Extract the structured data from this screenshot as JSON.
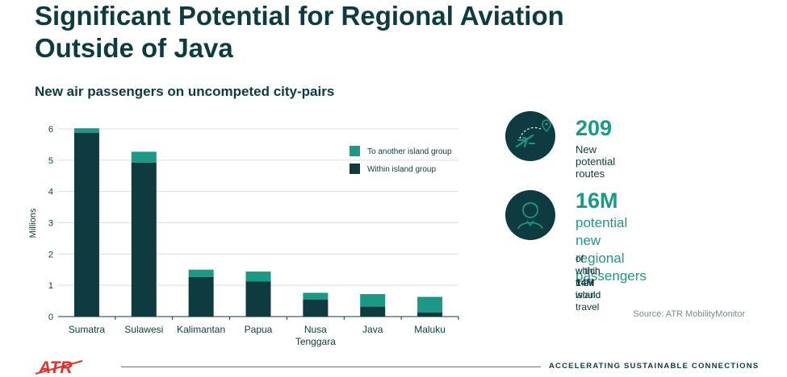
{
  "title": "Significant Potential for Regional Aviation Outside of Java",
  "colors": {
    "dark": "#0e3b3f",
    "teal": "#1a9a86"
  },
  "chart_data": {
    "type": "bar",
    "stacked": true,
    "subtitle": "New air passengers on uncompeted city-pairs",
    "ylabel": "Millions",
    "ylim": [
      0,
      6
    ],
    "yticks": [
      0,
      1,
      2,
      3,
      4,
      5,
      6
    ],
    "grid": true,
    "legend_position": "top-right",
    "categories": [
      "Sumatra",
      "Sulawesi",
      "Kalimantan",
      "Papua",
      "Nusa Tenggara",
      "Java",
      "Maluku"
    ],
    "series": [
      {
        "name": "Within island group",
        "color": "#0e3b3f",
        "values": [
          5.88,
          4.92,
          1.27,
          1.12,
          0.54,
          0.32,
          0.13
        ]
      },
      {
        "name": "To another island group",
        "color": "#1a9a86",
        "values": [
          0.14,
          0.35,
          0.23,
          0.32,
          0.22,
          0.4,
          0.5
        ]
      }
    ]
  },
  "stats": [
    {
      "icon": "plane-route-icon",
      "value": "209",
      "label": "New potential routes"
    },
    {
      "icon": "passenger-icon",
      "value": "16M",
      "label_line1": "potential",
      "label_line2": "new regional passengers",
      "note_pre": "of which ",
      "note_bold": "14M",
      "note_post": " would travel",
      "note_line2": "within their island"
    }
  ],
  "source": "Source: ATR MobilityMonitor",
  "footer": {
    "logo": "ATR",
    "tagline": "ACCELERATING SUSTAINABLE CONNECTIONS"
  }
}
